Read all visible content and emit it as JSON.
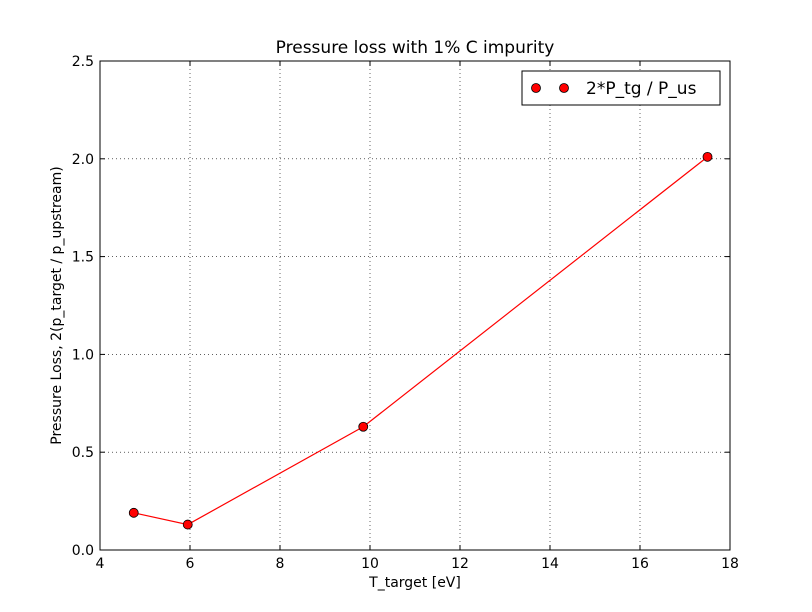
{
  "chart_data": {
    "type": "line",
    "title": "Pressure loss with 1% C impurity",
    "xlabel": "T_target [eV]",
    "ylabel": "Pressure Loss, 2(p_target / p_upstream)",
    "xlim": [
      4,
      18
    ],
    "ylim": [
      0,
      2.5
    ],
    "xticks": [
      4,
      6,
      8,
      10,
      12,
      14,
      16,
      18
    ],
    "xtick_labels": [
      "4",
      "6",
      "8",
      "10",
      "12",
      "14",
      "16",
      "18"
    ],
    "yticks": [
      0,
      0.5,
      1.0,
      1.5,
      2.0,
      2.5
    ],
    "ytick_labels": [
      "0.0",
      "0.5",
      "1.0",
      "1.5",
      "2.0",
      "2.5"
    ],
    "grid": true,
    "legend_position": "top-right",
    "series": [
      {
        "name": "2*P_tg / P_us",
        "color": "#ff0000",
        "marker": "circle",
        "x": [
          4.75,
          5.95,
          9.85,
          17.5
        ],
        "y": [
          0.19,
          0.13,
          0.63,
          2.01
        ]
      }
    ]
  }
}
